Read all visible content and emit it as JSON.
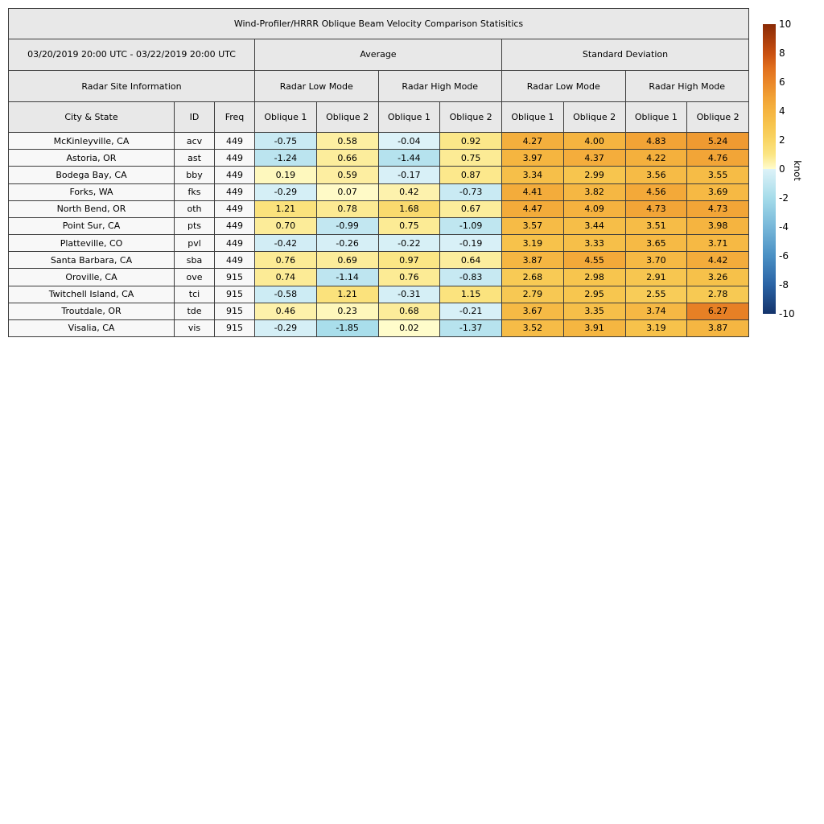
{
  "title": "Wind-Profiler/HRRR Oblique Beam Velocity Comparison Statisitics",
  "header": {
    "date_range": "03/20/2019 20:00 UTC - 03/22/2019 20:00 UTC",
    "average_label": "Average",
    "stddev_label": "Standard Deviation",
    "site_info_label": "Radar Site Information",
    "mode_labels": [
      "Radar Low Mode",
      "Radar High Mode",
      "Radar Low Mode",
      "Radar High Mode"
    ],
    "col_labels": [
      "City & State",
      "ID",
      "Freq",
      "Oblique 1",
      "Oblique 2",
      "Oblique 1",
      "Oblique 2",
      "Oblique 1",
      "Oblique 2",
      "Oblique 1",
      "Oblique 2"
    ]
  },
  "chart_data": {
    "type": "heatmap",
    "description": "Table of average and standard deviation of oblique beam velocity differences (knots), cells colored by value",
    "value_column_groups": [
      {
        "group": "Average",
        "modes": [
          "Radar Low Mode",
          "Radar High Mode"
        ]
      },
      {
        "group": "Standard Deviation",
        "modes": [
          "Radar Low Mode",
          "Radar High Mode"
        ]
      }
    ],
    "rows": [
      {
        "city": "McKinleyville, CA",
        "id": "acv",
        "freq": "449",
        "values": [
          "-0.75",
          "0.58",
          "-0.04",
          "0.92",
          "4.27",
          "4.00",
          "4.83",
          "5.24"
        ]
      },
      {
        "city": "Astoria, OR",
        "id": "ast",
        "freq": "449",
        "values": [
          "-1.24",
          "0.66",
          "-1.44",
          "0.75",
          "3.97",
          "4.37",
          "4.22",
          "4.76"
        ]
      },
      {
        "city": "Bodega Bay, CA",
        "id": "bby",
        "freq": "449",
        "values": [
          "0.19",
          "0.59",
          "-0.17",
          "0.87",
          "3.34",
          "2.99",
          "3.56",
          "3.55"
        ]
      },
      {
        "city": "Forks, WA",
        "id": "fks",
        "freq": "449",
        "values": [
          "-0.29",
          "0.07",
          "0.42",
          "-0.73",
          "4.41",
          "3.82",
          "4.56",
          "3.69"
        ]
      },
      {
        "city": "North Bend, OR",
        "id": "oth",
        "freq": "449",
        "values": [
          "1.21",
          "0.78",
          "1.68",
          "0.67",
          "4.47",
          "4.09",
          "4.73",
          "4.73"
        ]
      },
      {
        "city": "Point Sur, CA",
        "id": "pts",
        "freq": "449",
        "values": [
          "0.70",
          "-0.99",
          "0.75",
          "-1.09",
          "3.57",
          "3.44",
          "3.51",
          "3.98"
        ]
      },
      {
        "city": "Platteville, CO",
        "id": "pvl",
        "freq": "449",
        "values": [
          "-0.42",
          "-0.26",
          "-0.22",
          "-0.19",
          "3.19",
          "3.33",
          "3.65",
          "3.71"
        ]
      },
      {
        "city": "Santa Barbara, CA",
        "id": "sba",
        "freq": "449",
        "values": [
          "0.76",
          "0.69",
          "0.97",
          "0.64",
          "3.87",
          "4.55",
          "3.70",
          "4.42"
        ]
      },
      {
        "city": "Oroville, CA",
        "id": "ove",
        "freq": "915",
        "values": [
          "0.74",
          "-1.14",
          "0.76",
          "-0.83",
          "2.68",
          "2.98",
          "2.91",
          "3.26"
        ]
      },
      {
        "city": "Twitchell Island, CA",
        "id": "tci",
        "freq": "915",
        "values": [
          "-0.58",
          "1.21",
          "-0.31",
          "1.15",
          "2.79",
          "2.95",
          "2.55",
          "2.78"
        ]
      },
      {
        "city": "Troutdale, OR",
        "id": "tde",
        "freq": "915",
        "values": [
          "0.46",
          "0.23",
          "0.68",
          "-0.21",
          "3.67",
          "3.35",
          "3.74",
          "6.27"
        ]
      },
      {
        "city": "Visalia, CA",
        "id": "vis",
        "freq": "915",
        "values": [
          "-0.29",
          "-1.85",
          "0.02",
          "-1.37",
          "3.52",
          "3.91",
          "3.19",
          "3.87"
        ]
      }
    ]
  },
  "colorbar": {
    "label": "knot",
    "range": [
      -10,
      10
    ],
    "ticks": [
      "10",
      "8",
      "6",
      "4",
      "2",
      "0",
      "-2",
      "-4",
      "-6",
      "-8",
      "-10"
    ],
    "colormap_stops": [
      [
        -10,
        "#14336b"
      ],
      [
        -8,
        "#2a63a5"
      ],
      [
        -6,
        "#4a90c4"
      ],
      [
        -4,
        "#77b7d9"
      ],
      [
        -2,
        "#a5dcea"
      ],
      [
        -1,
        "#c2e7f1"
      ],
      [
        -0.001,
        "#ddf2f8"
      ],
      [
        0.001,
        "#fffccc"
      ],
      [
        1,
        "#fbe583"
      ],
      [
        2,
        "#f9d564"
      ],
      [
        3,
        "#f7c54e"
      ],
      [
        4,
        "#f5b440"
      ],
      [
        5,
        "#f1a034"
      ],
      [
        6,
        "#ea8628"
      ],
      [
        7,
        "#e06e1d"
      ],
      [
        8,
        "#c84f10"
      ],
      [
        10,
        "#8a2a06"
      ]
    ]
  }
}
